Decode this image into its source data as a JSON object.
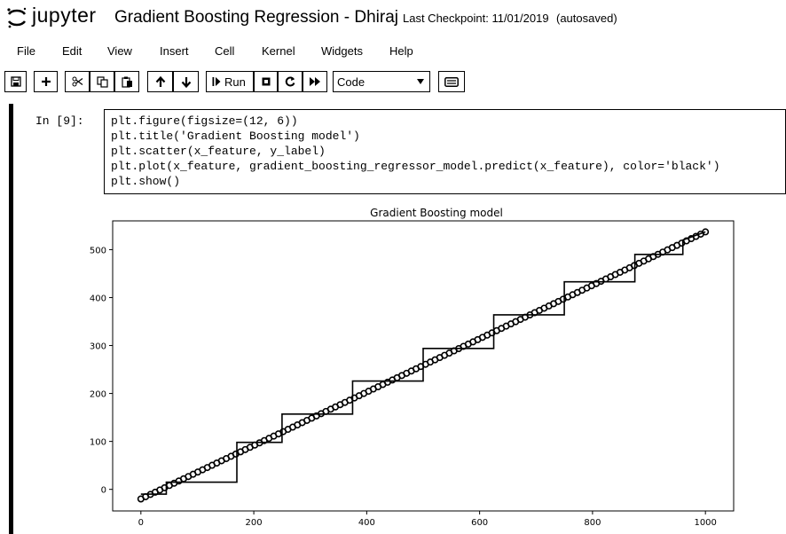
{
  "app": {
    "logo_text": "jupyter",
    "notebook_title": "Gradient Boosting Regression - Dhiraj",
    "checkpoint": "Last Checkpoint: 11/01/2019",
    "autosave_status": "(autosaved)"
  },
  "menu": [
    "File",
    "Edit",
    "View",
    "Insert",
    "Cell",
    "Kernel",
    "Widgets",
    "Help"
  ],
  "toolbar": {
    "icons": [
      "save-icon",
      "plus-icon",
      "cut-icon",
      "copy-icon",
      "paste-icon",
      "arrow-up-icon",
      "arrow-down-icon",
      "run-icon",
      "stop-icon",
      "restart-icon",
      "fast-forward-icon",
      "keyboard-icon"
    ],
    "run_label": "Run",
    "cell_type": "Code"
  },
  "cell": {
    "prompt": "In [9]:",
    "code": [
      "plt.figure(figsize=(12, 6))",
      "plt.title('Gradient Boosting model')",
      "plt.scatter(x_feature, y_label)",
      "plt.plot(x_feature, gradient_boosting_regressor_model.predict(x_feature), color='black')",
      "plt.show()"
    ]
  },
  "chart_data": {
    "type": "scatter",
    "title": "Gradient Boosting model",
    "xlabel": "",
    "ylabel": "",
    "xlim": [
      -50,
      1050
    ],
    "ylim": [
      -45,
      560
    ],
    "xticks": [
      0,
      200,
      400,
      600,
      800,
      1000
    ],
    "yticks": [
      0,
      100,
      200,
      300,
      400,
      500
    ],
    "grid": false,
    "scatter_series": {
      "x_start": 0,
      "x_end": 1000,
      "y_start": -20,
      "y_end": 537,
      "n_points": 120
    },
    "step_prediction": {
      "x": [
        0,
        45,
        45,
        170,
        170,
        250,
        250,
        375,
        375,
        500,
        500,
        625,
        625,
        750,
        750,
        875,
        875,
        960,
        960,
        1000
      ],
      "y": [
        -10,
        -10,
        15,
        15,
        98,
        98,
        157,
        157,
        226,
        226,
        294,
        294,
        364,
        364,
        433,
        433,
        490,
        490,
        520,
        537
      ]
    },
    "colors": {
      "marker": "#000000",
      "line": "#000000"
    }
  }
}
